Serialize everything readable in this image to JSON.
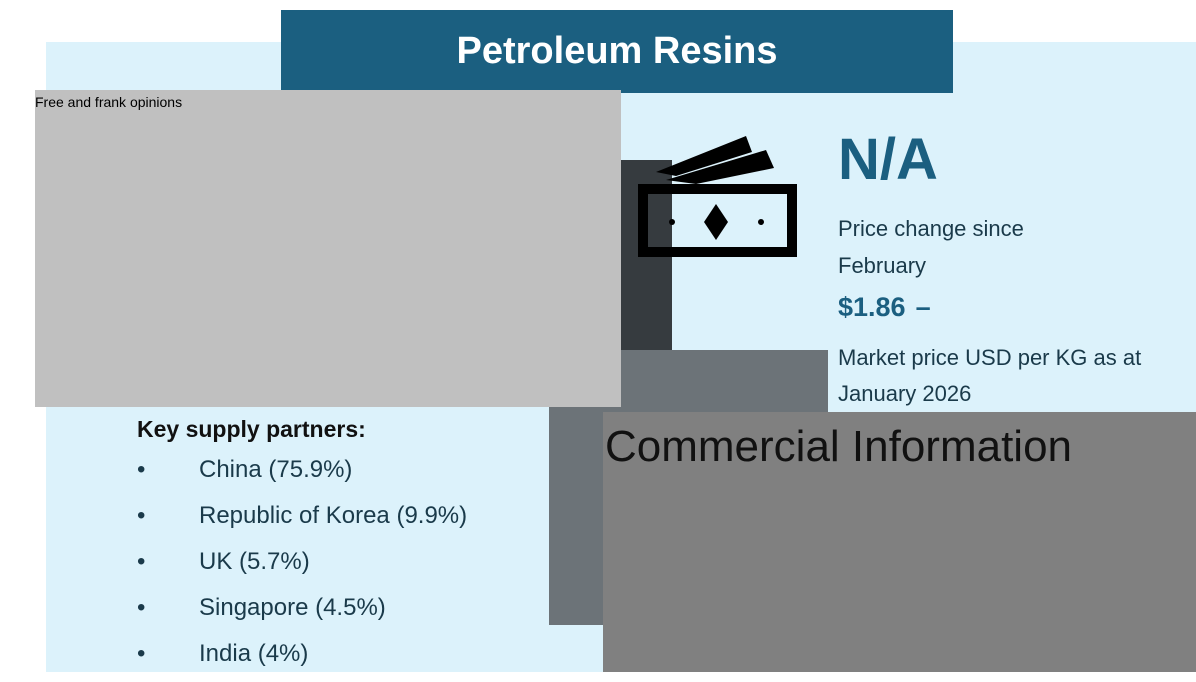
{
  "header": {
    "title": "Petroleum Resins"
  },
  "redaction": {
    "label": "Free and frank opinions"
  },
  "price_change": {
    "value": "N/A",
    "caption": "Price change since February"
  },
  "market_price": {
    "value": "$1.86",
    "trend": "–",
    "caption": "Market price USD per KG as at January 2026"
  },
  "commercial": {
    "label": "Commercial Information"
  },
  "supply": {
    "heading": "Key supply partners:",
    "items": [
      "China (75.9%)",
      "Republic of Korea (9.9%)",
      "UK (5.7%)",
      "Singapore (4.5%)",
      "India (4%)"
    ]
  }
}
